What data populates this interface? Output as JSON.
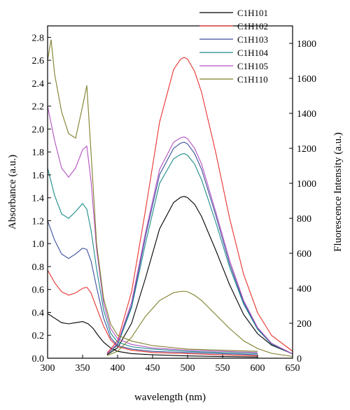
{
  "chart_data": {
    "type": "line",
    "title": "",
    "xlabel": "wavelength (nm)",
    "ylabel_left": "Absorbance (a.u.)",
    "ylabel_right": "Fluorescence Intensity (a.u.)",
    "xlim": [
      300,
      650
    ],
    "ylim_left": [
      0,
      2.9
    ],
    "ylim_right": [
      0,
      1900
    ],
    "x_ticks": [
      300,
      350,
      400,
      450,
      500,
      550,
      600,
      650
    ],
    "y_left_ticks": [
      0.0,
      0.2,
      0.4,
      0.6,
      0.8,
      1.0,
      1.2,
      1.4,
      1.6,
      1.8,
      2.0,
      2.2,
      2.4,
      2.6,
      2.8
    ],
    "y_right_ticks": [
      0,
      200,
      400,
      600,
      800,
      1000,
      1200,
      1400,
      1600,
      1800
    ],
    "x_tick_labels": [
      "300",
      "350",
      "400",
      "450",
      "500",
      "550",
      "600",
      "650"
    ],
    "y_left_tick_labels": [
      "0.0",
      "0.2",
      "0.4",
      "0.6",
      "0.8",
      "1.0",
      "1.2",
      "1.4",
      "1.6",
      "1.8",
      "2.0",
      "2.2",
      "2.4",
      "2.6",
      "2.8"
    ],
    "y_right_tick_labels": [
      "0",
      "200",
      "400",
      "600",
      "800",
      "1000",
      "1200",
      "1400",
      "1600",
      "1800"
    ],
    "legend_position": "top-right",
    "grid": false,
    "series": [
      {
        "name": "C1H101",
        "color": "#000000",
        "absorbance": {
          "x": [
            300,
            310,
            320,
            330,
            340,
            350,
            358,
            365,
            372,
            380,
            390,
            400,
            420,
            450,
            500,
            550,
            600
          ],
          "y": [
            0.39,
            0.35,
            0.31,
            0.3,
            0.31,
            0.32,
            0.3,
            0.26,
            0.2,
            0.14,
            0.09,
            0.06,
            0.04,
            0.03,
            0.02,
            0.015,
            0.01
          ]
        },
        "fluorescence": {
          "x": [
            385,
            400,
            420,
            440,
            460,
            480,
            490,
            495,
            500,
            510,
            520,
            540,
            560,
            580,
            600,
            620,
            650
          ],
          "y": [
            20,
            60,
            200,
            460,
            740,
            890,
            920,
            925,
            918,
            880,
            810,
            620,
            420,
            250,
            140,
            75,
            25
          ]
        }
      },
      {
        "name": "C1H102",
        "color": "#e8332f",
        "absorbance": {
          "x": [
            300,
            310,
            320,
            330,
            340,
            350,
            356,
            362,
            370,
            380,
            390,
            400,
            420,
            450,
            500,
            550,
            600
          ],
          "y": [
            0.77,
            0.66,
            0.58,
            0.55,
            0.57,
            0.61,
            0.62,
            0.57,
            0.44,
            0.28,
            0.16,
            0.1,
            0.07,
            0.05,
            0.04,
            0.03,
            0.02
          ]
        },
        "fluorescence": {
          "x": [
            385,
            400,
            420,
            440,
            460,
            480,
            490,
            495,
            500,
            510,
            520,
            540,
            560,
            580,
            600,
            620,
            650
          ],
          "y": [
            30,
            100,
            380,
            850,
            1350,
            1650,
            1710,
            1720,
            1710,
            1640,
            1520,
            1180,
            800,
            480,
            260,
            130,
            40
          ]
        }
      },
      {
        "name": "C1H103",
        "color": "#3a4e9c",
        "absorbance": {
          "x": [
            300,
            310,
            320,
            330,
            340,
            350,
            356,
            362,
            370,
            380,
            390,
            400,
            420,
            450,
            500,
            550,
            600
          ],
          "y": [
            1.2,
            1.03,
            0.91,
            0.87,
            0.91,
            0.96,
            0.95,
            0.85,
            0.62,
            0.35,
            0.18,
            0.11,
            0.08,
            0.06,
            0.05,
            0.04,
            0.03
          ]
        },
        "fluorescence": {
          "x": [
            385,
            400,
            420,
            440,
            460,
            480,
            490,
            495,
            500,
            510,
            520,
            540,
            560,
            580,
            600,
            620,
            650
          ],
          "y": [
            25,
            80,
            300,
            700,
            1050,
            1200,
            1230,
            1235,
            1225,
            1170,
            1080,
            820,
            540,
            320,
            170,
            85,
            25
          ]
        }
      },
      {
        "name": "C1H104",
        "color": "#1c8a8a",
        "absorbance": {
          "x": [
            300,
            310,
            320,
            330,
            340,
            350,
            356,
            362,
            370,
            380,
            390,
            400,
            420,
            450,
            500,
            550,
            600
          ],
          "y": [
            1.66,
            1.42,
            1.26,
            1.22,
            1.28,
            1.35,
            1.3,
            1.12,
            0.78,
            0.42,
            0.22,
            0.14,
            0.1,
            0.08,
            0.06,
            0.05,
            0.04
          ]
        },
        "fluorescence": {
          "x": [
            385,
            400,
            420,
            440,
            460,
            480,
            490,
            495,
            500,
            510,
            520,
            540,
            560,
            580,
            600,
            620,
            650
          ],
          "y": [
            25,
            75,
            290,
            660,
            1000,
            1140,
            1165,
            1170,
            1160,
            1110,
            1020,
            780,
            520,
            310,
            165,
            80,
            25
          ]
        }
      },
      {
        "name": "C1H105",
        "color": "#b54fc1",
        "absorbance": {
          "x": [
            300,
            310,
            320,
            330,
            340,
            350,
            356,
            362,
            370,
            380,
            390,
            400,
            420,
            450,
            500,
            550,
            600
          ],
          "y": [
            2.2,
            1.9,
            1.66,
            1.58,
            1.66,
            1.82,
            1.85,
            1.55,
            0.95,
            0.48,
            0.26,
            0.17,
            0.12,
            0.09,
            0.07,
            0.06,
            0.05
          ]
        },
        "fluorescence": {
          "x": [
            385,
            400,
            420,
            440,
            460,
            480,
            490,
            495,
            500,
            510,
            520,
            540,
            560,
            580,
            600,
            620,
            650
          ],
          "y": [
            25,
            85,
            320,
            720,
            1080,
            1235,
            1260,
            1265,
            1255,
            1200,
            1110,
            840,
            560,
            330,
            175,
            85,
            25
          ]
        }
      },
      {
        "name": "C1H110",
        "color": "#7f7f2a",
        "absorbance": {
          "x": [
            300,
            305,
            310,
            320,
            330,
            340,
            350,
            356,
            362,
            370,
            380,
            390,
            400,
            420,
            450,
            500,
            550,
            600
          ],
          "y": [
            2.6,
            2.78,
            2.48,
            2.15,
            1.96,
            1.92,
            2.2,
            2.38,
            1.8,
            1.0,
            0.52,
            0.3,
            0.2,
            0.15,
            0.11,
            0.08,
            0.07,
            0.06
          ]
        },
        "fluorescence": {
          "x": [
            385,
            400,
            420,
            440,
            460,
            480,
            490,
            495,
            500,
            510,
            520,
            540,
            560,
            580,
            600,
            620,
            650
          ],
          "y": [
            15,
            40,
            120,
            240,
            330,
            375,
            382,
            383,
            380,
            360,
            330,
            250,
            170,
            100,
            55,
            28,
            10
          ]
        }
      }
    ]
  }
}
